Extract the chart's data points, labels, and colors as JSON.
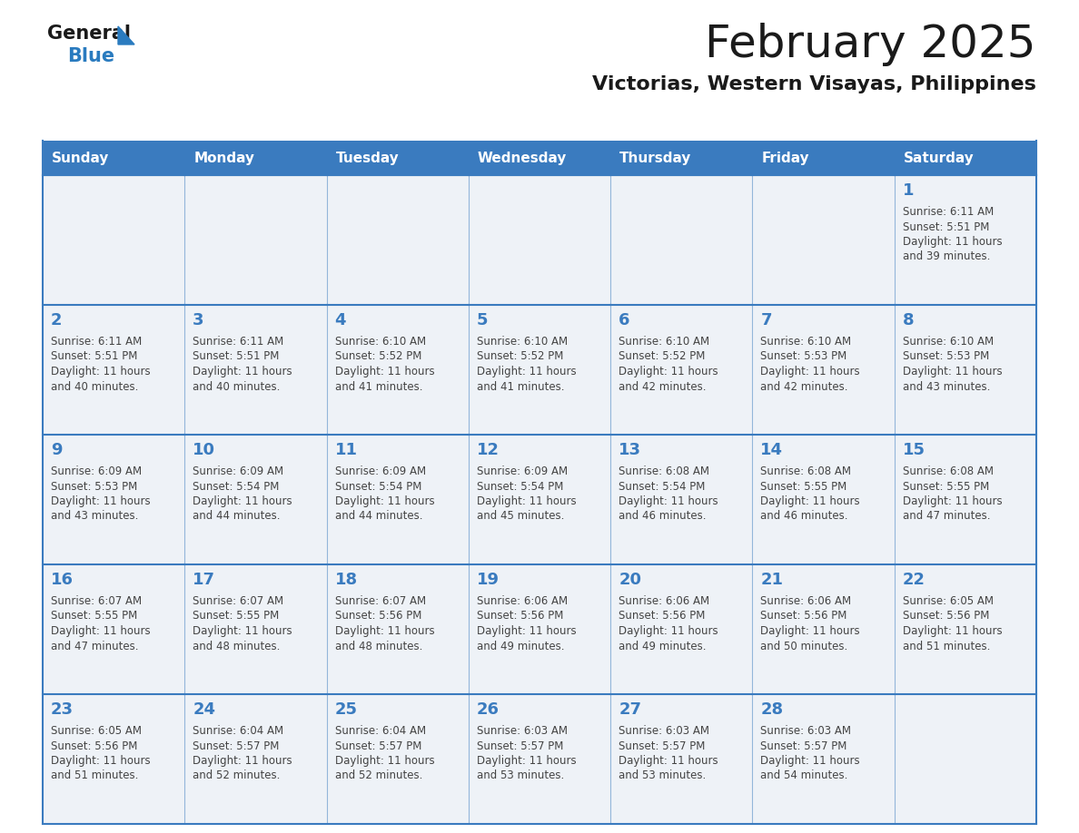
{
  "title": "February 2025",
  "subtitle": "Victorias, Western Visayas, Philippines",
  "days_of_week": [
    "Sunday",
    "Monday",
    "Tuesday",
    "Wednesday",
    "Thursday",
    "Friday",
    "Saturday"
  ],
  "header_bg_color": "#3a7bbf",
  "header_text_color": "#ffffff",
  "cell_bg_color": "#eef2f7",
  "border_color": "#3a7bbf",
  "day_num_color": "#3a7bbf",
  "text_color": "#444444",
  "title_color": "#1a1a1a",
  "subtitle_color": "#1a1a1a",
  "logo_general_color": "#1a1a1a",
  "logo_blue_color": "#2a7bbf",
  "logo_triangle_color": "#2a7bbf",
  "calendar_data": [
    [
      null,
      null,
      null,
      null,
      null,
      null,
      {
        "day": 1,
        "sunrise": "6:11 AM",
        "sunset": "5:51 PM",
        "daylight_h": "11 hours",
        "daylight_m": "and 39 minutes."
      }
    ],
    [
      {
        "day": 2,
        "sunrise": "6:11 AM",
        "sunset": "5:51 PM",
        "daylight_h": "11 hours",
        "daylight_m": "and 40 minutes."
      },
      {
        "day": 3,
        "sunrise": "6:11 AM",
        "sunset": "5:51 PM",
        "daylight_h": "11 hours",
        "daylight_m": "and 40 minutes."
      },
      {
        "day": 4,
        "sunrise": "6:10 AM",
        "sunset": "5:52 PM",
        "daylight_h": "11 hours",
        "daylight_m": "and 41 minutes."
      },
      {
        "day": 5,
        "sunrise": "6:10 AM",
        "sunset": "5:52 PM",
        "daylight_h": "11 hours",
        "daylight_m": "and 41 minutes."
      },
      {
        "day": 6,
        "sunrise": "6:10 AM",
        "sunset": "5:52 PM",
        "daylight_h": "11 hours",
        "daylight_m": "and 42 minutes."
      },
      {
        "day": 7,
        "sunrise": "6:10 AM",
        "sunset": "5:53 PM",
        "daylight_h": "11 hours",
        "daylight_m": "and 42 minutes."
      },
      {
        "day": 8,
        "sunrise": "6:10 AM",
        "sunset": "5:53 PM",
        "daylight_h": "11 hours",
        "daylight_m": "and 43 minutes."
      }
    ],
    [
      {
        "day": 9,
        "sunrise": "6:09 AM",
        "sunset": "5:53 PM",
        "daylight_h": "11 hours",
        "daylight_m": "and 43 minutes."
      },
      {
        "day": 10,
        "sunrise": "6:09 AM",
        "sunset": "5:54 PM",
        "daylight_h": "11 hours",
        "daylight_m": "and 44 minutes."
      },
      {
        "day": 11,
        "sunrise": "6:09 AM",
        "sunset": "5:54 PM",
        "daylight_h": "11 hours",
        "daylight_m": "and 44 minutes."
      },
      {
        "day": 12,
        "sunrise": "6:09 AM",
        "sunset": "5:54 PM",
        "daylight_h": "11 hours",
        "daylight_m": "and 45 minutes."
      },
      {
        "day": 13,
        "sunrise": "6:08 AM",
        "sunset": "5:54 PM",
        "daylight_h": "11 hours",
        "daylight_m": "and 46 minutes."
      },
      {
        "day": 14,
        "sunrise": "6:08 AM",
        "sunset": "5:55 PM",
        "daylight_h": "11 hours",
        "daylight_m": "and 46 minutes."
      },
      {
        "day": 15,
        "sunrise": "6:08 AM",
        "sunset": "5:55 PM",
        "daylight_h": "11 hours",
        "daylight_m": "and 47 minutes."
      }
    ],
    [
      {
        "day": 16,
        "sunrise": "6:07 AM",
        "sunset": "5:55 PM",
        "daylight_h": "11 hours",
        "daylight_m": "and 47 minutes."
      },
      {
        "day": 17,
        "sunrise": "6:07 AM",
        "sunset": "5:55 PM",
        "daylight_h": "11 hours",
        "daylight_m": "and 48 minutes."
      },
      {
        "day": 18,
        "sunrise": "6:07 AM",
        "sunset": "5:56 PM",
        "daylight_h": "11 hours",
        "daylight_m": "and 48 minutes."
      },
      {
        "day": 19,
        "sunrise": "6:06 AM",
        "sunset": "5:56 PM",
        "daylight_h": "11 hours",
        "daylight_m": "and 49 minutes."
      },
      {
        "day": 20,
        "sunrise": "6:06 AM",
        "sunset": "5:56 PM",
        "daylight_h": "11 hours",
        "daylight_m": "and 49 minutes."
      },
      {
        "day": 21,
        "sunrise": "6:06 AM",
        "sunset": "5:56 PM",
        "daylight_h": "11 hours",
        "daylight_m": "and 50 minutes."
      },
      {
        "day": 22,
        "sunrise": "6:05 AM",
        "sunset": "5:56 PM",
        "daylight_h": "11 hours",
        "daylight_m": "and 51 minutes."
      }
    ],
    [
      {
        "day": 23,
        "sunrise": "6:05 AM",
        "sunset": "5:56 PM",
        "daylight_h": "11 hours",
        "daylight_m": "and 51 minutes."
      },
      {
        "day": 24,
        "sunrise": "6:04 AM",
        "sunset": "5:57 PM",
        "daylight_h": "11 hours",
        "daylight_m": "and 52 minutes."
      },
      {
        "day": 25,
        "sunrise": "6:04 AM",
        "sunset": "5:57 PM",
        "daylight_h": "11 hours",
        "daylight_m": "and 52 minutes."
      },
      {
        "day": 26,
        "sunrise": "6:03 AM",
        "sunset": "5:57 PM",
        "daylight_h": "11 hours",
        "daylight_m": "and 53 minutes."
      },
      {
        "day": 27,
        "sunrise": "6:03 AM",
        "sunset": "5:57 PM",
        "daylight_h": "11 hours",
        "daylight_m": "and 53 minutes."
      },
      {
        "day": 28,
        "sunrise": "6:03 AM",
        "sunset": "5:57 PM",
        "daylight_h": "11 hours",
        "daylight_m": "and 54 minutes."
      },
      null
    ]
  ]
}
